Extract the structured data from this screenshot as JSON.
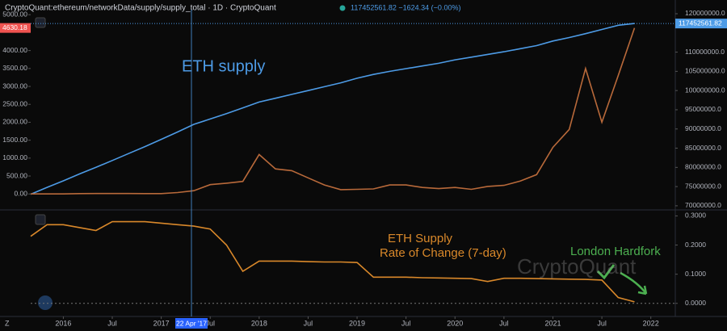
{
  "chart_data": [
    {
      "type": "line",
      "title": "CryptoQuant:ethereum/networkData/supply/supply_total · 1D · CryptoQuant",
      "legend_value": "117452561.82 −1624.34 (−0.00%)",
      "x": [
        "2015-09",
        "2015-11",
        "2016-01",
        "2016-03",
        "2016-05",
        "2016-07",
        "2016-09",
        "2016-11",
        "2017-01",
        "2017-03",
        "2017-05",
        "2017-07",
        "2017-09",
        "2017-11",
        "2018-01",
        "2018-03",
        "2018-05",
        "2018-07",
        "2018-09",
        "2018-11",
        "2019-01",
        "2019-03",
        "2019-05",
        "2019-07",
        "2019-09",
        "2019-11",
        "2020-01",
        "2020-03",
        "2020-05",
        "2020-07",
        "2020-09",
        "2020-11",
        "2021-01",
        "2021-03",
        "2021-05",
        "2021-07",
        "2021-09",
        "2021-11"
      ],
      "xlim": [
        "2015-09",
        "2022-04"
      ],
      "series": [
        {
          "name": "ETH supply",
          "color": "#4d9be6",
          "axis": "y2",
          "last_label": "117452561.82",
          "values": [
            73000000,
            74800000,
            76500000,
            78300000,
            80000000,
            81800000,
            83600000,
            85400000,
            87300000,
            89200000,
            91200000,
            92600000,
            94000000,
            95500000,
            97000000,
            98000000,
            99000000,
            100000000,
            101000000,
            102000000,
            103200000,
            104200000,
            105000000,
            105700000,
            106400000,
            107100000,
            108000000,
            108700000,
            109400000,
            110100000,
            110900000,
            111700000,
            112900000,
            113800000,
            114800000,
            115900000,
            117000000,
            117452561.82
          ]
        },
        {
          "color": "#b8693a",
          "axis": "y",
          "last_label": "4630.18",
          "values": [
            1,
            1,
            1,
            10,
            12,
            12,
            12,
            10,
            10,
            40,
            90,
            260,
            300,
            350,
            1100,
            700,
            650,
            450,
            250,
            120,
            130,
            140,
            250,
            250,
            180,
            150,
            180,
            130,
            210,
            240,
            360,
            540,
            1300,
            1800,
            3500,
            2000,
            3300,
            4630.18
          ]
        }
      ],
      "ylim": [
        -400,
        5140
      ],
      "yticks": [
        {
          "value": 0,
          "label": "0.00"
        },
        {
          "value": 500,
          "label": "500.00"
        },
        {
          "value": 1000,
          "label": "1000.00"
        },
        {
          "value": 1500,
          "label": "1500.00"
        },
        {
          "value": 2000,
          "label": "2000.00"
        },
        {
          "value": 2500,
          "label": "2500.00"
        },
        {
          "value": 3000,
          "label": "3000.00"
        },
        {
          "value": 3500,
          "label": "3500.00"
        },
        {
          "value": 4000,
          "label": "4000.00"
        },
        {
          "value": 5000,
          "label": "5000.00"
        }
      ],
      "y2lim": [
        69350000,
        121050000
      ],
      "y2ticks": [
        {
          "value": 70000000,
          "label": "70000000.0"
        },
        {
          "value": 75000000,
          "label": "75000000.0"
        },
        {
          "value": 80000000,
          "label": "80000000.0"
        },
        {
          "value": 85000000,
          "label": "85000000.0"
        },
        {
          "value": 90000000,
          "label": "90000000.0"
        },
        {
          "value": 95000000,
          "label": "95000000.0"
        },
        {
          "value": 100000000,
          "label": "100000000.0"
        },
        {
          "value": 105000000,
          "label": "105000000.0"
        },
        {
          "value": 110000000,
          "label": "110000000.0"
        },
        {
          "value": 120000000,
          "label": "120000000.0"
        }
      ]
    },
    {
      "type": "line",
      "annotations": [
        "ETH Supply",
        "Rate of Change (7-day)",
        "London Hardfork",
        "CryptoQuant"
      ],
      "x": [
        "2015-09",
        "2015-11",
        "2016-01",
        "2016-03",
        "2016-05",
        "2016-07",
        "2016-09",
        "2016-11",
        "2017-01",
        "2017-03",
        "2017-05",
        "2017-07",
        "2017-09",
        "2017-11",
        "2018-01",
        "2018-03",
        "2018-05",
        "2018-07",
        "2018-09",
        "2018-11",
        "2019-01",
        "2019-03",
        "2019-05",
        "2019-07",
        "2019-09",
        "2019-11",
        "2020-01",
        "2020-03",
        "2020-05",
        "2020-07",
        "2020-09",
        "2020-11",
        "2021-01",
        "2021-03",
        "2021-05",
        "2021-07",
        "2021-09",
        "2021-11"
      ],
      "xlim": [
        "2015-09",
        "2022-04"
      ],
      "series": [
        {
          "color": "#d9882a",
          "axis": "y2",
          "values": [
            0.23,
            0.27,
            0.27,
            0.26,
            0.25,
            0.28,
            0.28,
            0.28,
            0.275,
            0.27,
            0.265,
            0.255,
            0.2,
            0.11,
            0.145,
            0.145,
            0.145,
            0.143,
            0.142,
            0.142,
            0.14,
            0.09,
            0.09,
            0.09,
            0.088,
            0.087,
            0.086,
            0.085,
            0.075,
            0.086,
            0.086,
            0.085,
            0.084,
            0.083,
            0.082,
            0.08,
            0.02,
            0.005
          ]
        }
      ],
      "y2lim": [
        -0.045,
        0.315
      ],
      "y2ticks": [
        {
          "value": 0,
          "label": "0.0000"
        },
        {
          "value": 0.1,
          "label": "0.1000"
        },
        {
          "value": 0.2,
          "label": "0.2000"
        },
        {
          "value": 0.3,
          "label": "0.3000"
        }
      ],
      "xticks": [
        {
          "value": "2016-01",
          "label": "2016"
        },
        {
          "value": "2016-07",
          "label": "Jul"
        },
        {
          "value": "2017-01",
          "label": "2017"
        },
        {
          "value": "2017-07",
          "label": "Jul"
        },
        {
          "value": "2018-01",
          "label": "2018"
        },
        {
          "value": "2018-07",
          "label": "Jul"
        },
        {
          "value": "2019-01",
          "label": "2019"
        },
        {
          "value": "2019-07",
          "label": "Jul"
        },
        {
          "value": "2020-01",
          "label": "2020"
        },
        {
          "value": "2020-07",
          "label": "Jul"
        },
        {
          "value": "2021-01",
          "label": "2021"
        },
        {
          "value": "2021-07",
          "label": "Jul"
        },
        {
          "value": "2022-01",
          "label": "2022"
        }
      ],
      "crosshair": {
        "value": "2017-04-22",
        "label": "22 Apr '17"
      }
    }
  ]
}
